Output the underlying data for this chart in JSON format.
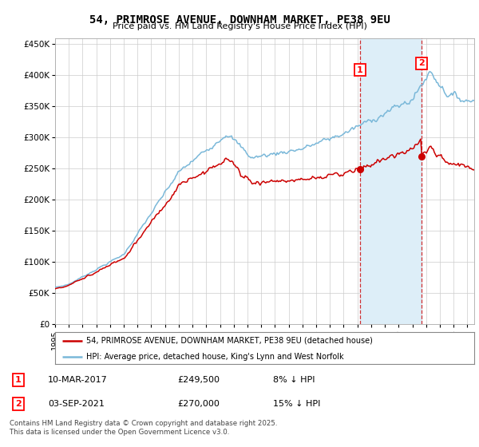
{
  "title": "54, PRIMROSE AVENUE, DOWNHAM MARKET, PE38 9EU",
  "subtitle": "Price paid vs. HM Land Registry's House Price Index (HPI)",
  "legend_line1": "54, PRIMROSE AVENUE, DOWNHAM MARKET, PE38 9EU (detached house)",
  "legend_line2": "HPI: Average price, detached house, King's Lynn and West Norfolk",
  "footnote": "Contains HM Land Registry data © Crown copyright and database right 2025.\nThis data is licensed under the Open Government Licence v3.0.",
  "annotation1_label": "1",
  "annotation1_date": "10-MAR-2017",
  "annotation1_price": "£249,500",
  "annotation1_note": "8% ↓ HPI",
  "annotation1_year": 2017.19,
  "annotation1_value": 249500,
  "annotation2_label": "2",
  "annotation2_date": "03-SEP-2021",
  "annotation2_price": "£270,000",
  "annotation2_note": "15% ↓ HPI",
  "annotation2_year": 2021.67,
  "annotation2_value": 270000,
  "hpi_color": "#7ab8d9",
  "shade_color": "#ddeef8",
  "price_color": "#cc0000",
  "ylim_min": 0,
  "ylim_max": 460000,
  "xlim_min": 1995,
  "xlim_max": 2025.5,
  "background_color": "#ffffff",
  "plot_bg_color": "#ffffff",
  "grid_color": "#cccccc"
}
